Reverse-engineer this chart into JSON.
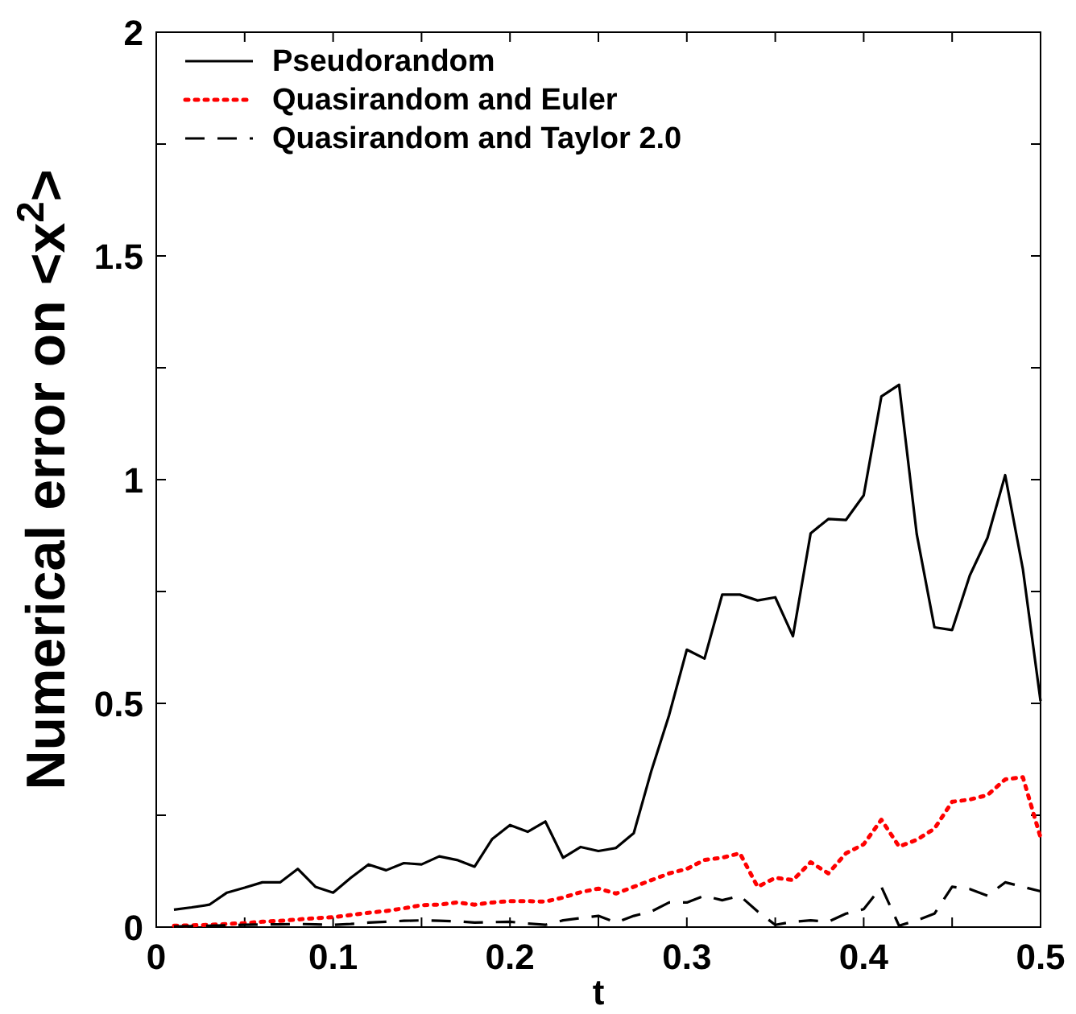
{
  "chart_data": {
    "type": "line",
    "xlabel": "t",
    "ylabel": "Numerical error on <x$^{2}$>",
    "x": [
      0.01,
      0.02,
      0.03,
      0.04,
      0.05,
      0.06,
      0.07,
      0.08,
      0.09,
      0.1,
      0.11,
      0.12,
      0.13,
      0.14,
      0.15,
      0.16,
      0.17,
      0.18,
      0.19,
      0.2,
      0.21,
      0.22,
      0.23,
      0.24,
      0.25,
      0.26,
      0.27,
      0.28,
      0.29,
      0.3,
      0.31,
      0.32,
      0.33,
      0.34,
      0.35,
      0.36,
      0.37,
      0.38,
      0.39,
      0.4,
      0.41,
      0.42,
      0.43,
      0.44,
      0.45,
      0.46,
      0.47,
      0.48,
      0.49,
      0.5
    ],
    "series": [
      {
        "name": "Pseudorandom",
        "color": "#000000",
        "line_style": "solid",
        "values": [
          0.039,
          0.044,
          0.05,
          0.077,
          0.088,
          0.1,
          0.1,
          0.13,
          0.09,
          0.077,
          0.11,
          0.14,
          0.127,
          0.143,
          0.14,
          0.158,
          0.15,
          0.135,
          0.197,
          0.228,
          0.213,
          0.236,
          0.155,
          0.179,
          0.17,
          0.177,
          0.21,
          0.35,
          0.474,
          0.62,
          0.6,
          0.743,
          0.743,
          0.73,
          0.737,
          0.65,
          0.88,
          0.912,
          0.91,
          0.965,
          1.186,
          1.212,
          0.878,
          0.67,
          0.664,
          0.786,
          0.87,
          1.01,
          0.8,
          0.505
        ]
      },
      {
        "name": "Quasirandom and Euler",
        "color": "#ff0000",
        "line_style": "dotted",
        "values": [
          0.003,
          0.004,
          0.005,
          0.007,
          0.009,
          0.012,
          0.014,
          0.017,
          0.02,
          0.022,
          0.027,
          0.032,
          0.036,
          0.042,
          0.049,
          0.05,
          0.055,
          0.05,
          0.055,
          0.058,
          0.058,
          0.057,
          0.066,
          0.078,
          0.086,
          0.075,
          0.09,
          0.105,
          0.12,
          0.13,
          0.15,
          0.155,
          0.165,
          0.09,
          0.11,
          0.105,
          0.145,
          0.12,
          0.165,
          0.185,
          0.24,
          0.18,
          0.195,
          0.22,
          0.28,
          0.285,
          0.295,
          0.33,
          0.335,
          0.2
        ]
      },
      {
        "name": "Quasirandom and Taylor 2.0",
        "color": "#000000",
        "line_style": "dashed",
        "values": [
          0.001,
          0.002,
          0.003,
          0.004,
          0.005,
          0.006,
          0.006,
          0.007,
          0.006,
          0.005,
          0.007,
          0.01,
          0.012,
          0.014,
          0.015,
          0.014,
          0.013,
          0.01,
          0.011,
          0.012,
          0.008,
          0.005,
          0.015,
          0.02,
          0.025,
          0.01,
          0.025,
          0.035,
          0.055,
          0.055,
          0.07,
          0.06,
          0.07,
          0.035,
          0.005,
          0.012,
          0.015,
          0.012,
          0.03,
          0.04,
          0.09,
          0.003,
          0.015,
          0.03,
          0.09,
          0.085,
          0.07,
          0.1,
          0.09,
          0.08
        ]
      }
    ],
    "xlim": [
      0,
      0.5
    ],
    "xticks": [
      0,
      {
        "value": 0.05,
        "label": null
      },
      0.1,
      {
        "value": 0.15,
        "label": null
      },
      0.2,
      {
        "value": 0.25,
        "label": null
      },
      0.3,
      {
        "value": 0.35,
        "label": null
      },
      0.4,
      {
        "value": 0.45,
        "label": null
      },
      0.5
    ],
    "ylim": [
      0,
      2
    ],
    "yticks": [
      0,
      {
        "value": 0.25,
        "label": null
      },
      0.5,
      {
        "value": 0.75,
        "label": null
      },
      1,
      {
        "value": 1.25,
        "label": null
      },
      1.5,
      {
        "value": 1.75,
        "label": null
      },
      2
    ],
    "grid": false,
    "legend": "top left",
    "marker": "none"
  }
}
